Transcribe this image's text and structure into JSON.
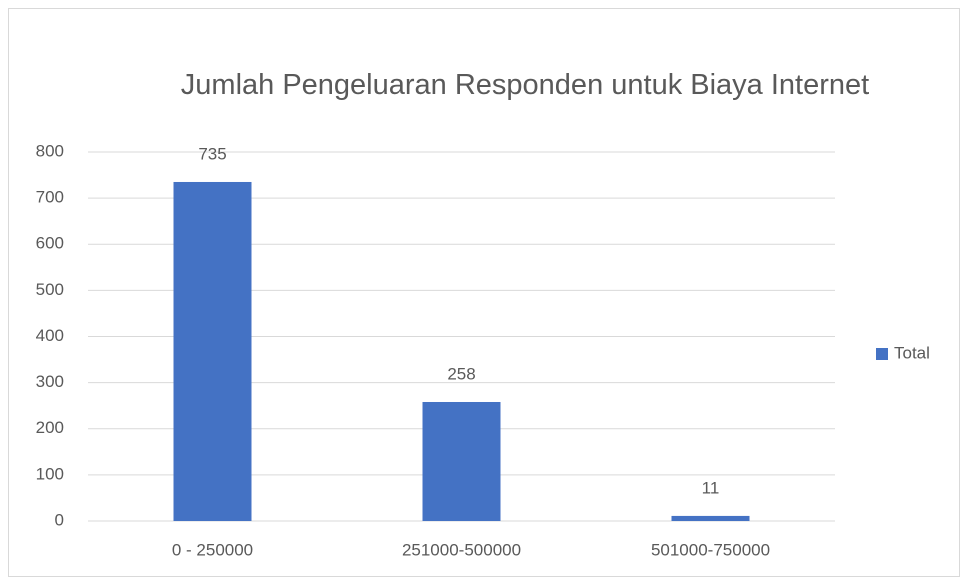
{
  "chart_data": {
    "type": "bar",
    "title": "Jumlah Pengeluaran Responden untuk Biaya Internet",
    "categories": [
      "0 - 250000",
      "251000-500000",
      "501000-750000"
    ],
    "series": [
      {
        "name": "Total",
        "color": "#4472c4",
        "values": [
          735,
          258,
          11
        ]
      }
    ],
    "ylim": [
      0,
      800
    ],
    "yticks": [
      0,
      100,
      200,
      300,
      400,
      500,
      600,
      700,
      800
    ],
    "grid": true,
    "legend": "right"
  }
}
